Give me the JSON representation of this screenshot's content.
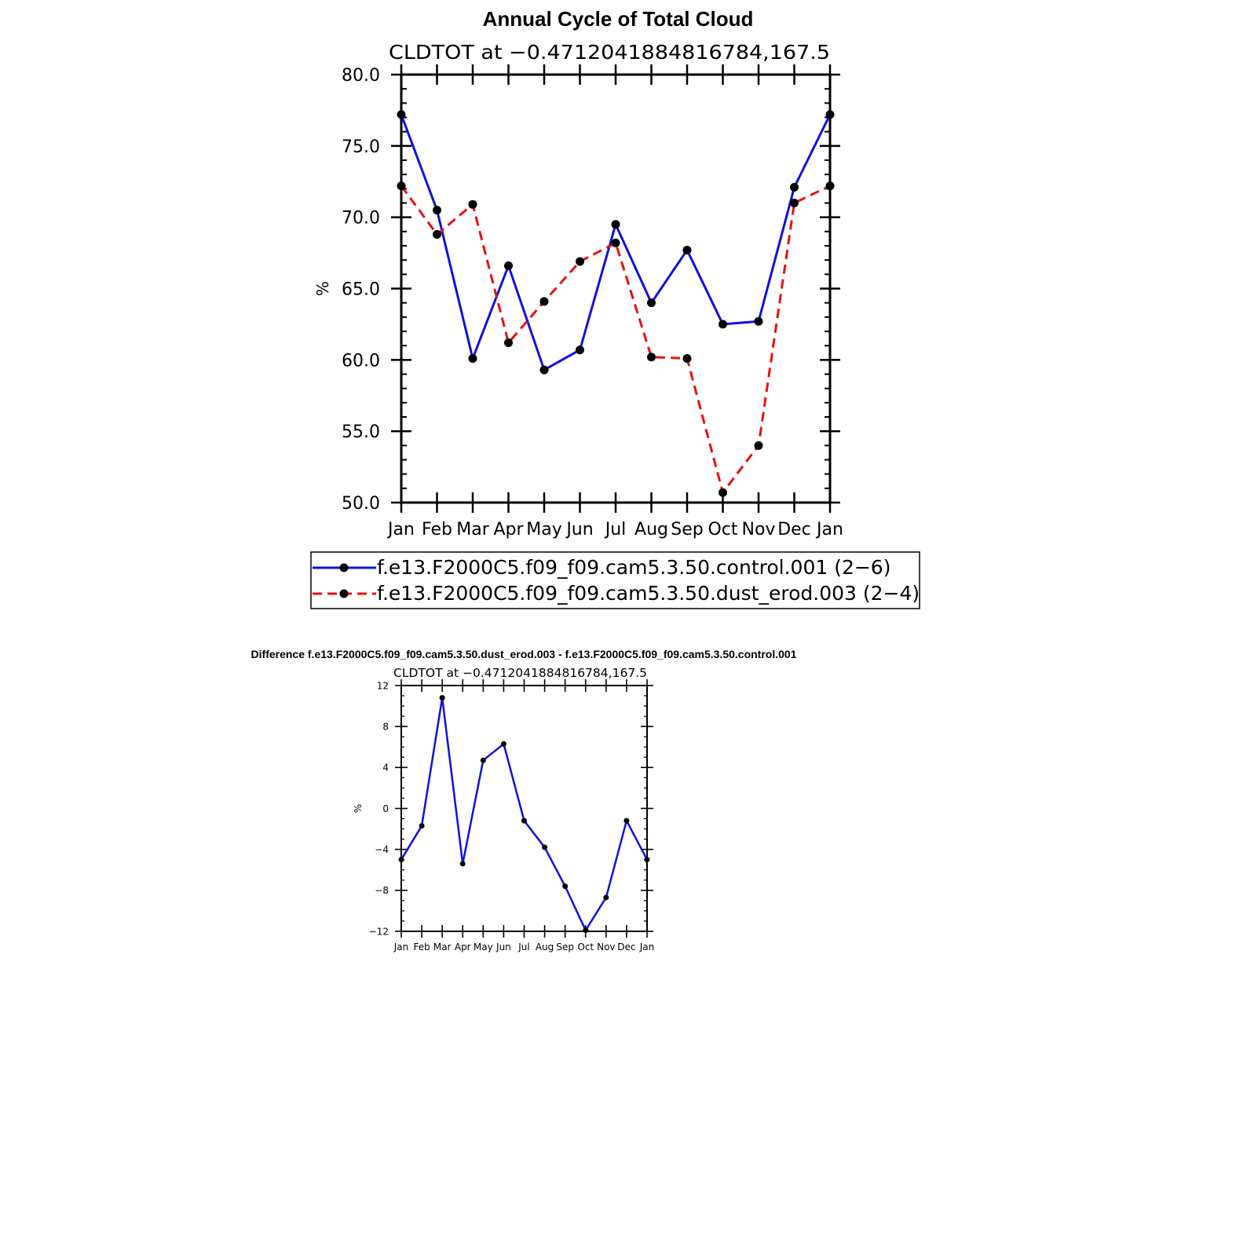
{
  "figure": {
    "title": "Annual Cycle of Total Cloud"
  },
  "chart_data": [
    {
      "type": "line",
      "title": "Annual Cycle of Total Cloud",
      "subtitle": "CLDTOT at −0.4712041884816784,167.5",
      "ylabel": "%",
      "xlabel": "",
      "ylim": [
        50.0,
        80.0
      ],
      "yticks": [
        "50.0",
        "55.0",
        "60.0",
        "65.0",
        "70.0",
        "75.0",
        "80.0"
      ],
      "categories": [
        "Jan",
        "Feb",
        "Mar",
        "Apr",
        "May",
        "Jun",
        "Jul",
        "Aug",
        "Sep",
        "Oct",
        "Nov",
        "Dec",
        "Jan"
      ],
      "grid": false,
      "legend_position": "bottom",
      "series": [
        {
          "name": "f.e13.F2000C5.f09_f09.cam5.3.50.control.001 (2−6)",
          "color": "#1010e0",
          "dash": "solid",
          "values": [
            77.2,
            70.5,
            60.1,
            66.6,
            59.3,
            60.7,
            69.5,
            64.0,
            67.7,
            62.5,
            62.7,
            72.1,
            77.2
          ]
        },
        {
          "name": "f.e13.F2000C5.f09_f09.cam5.3.50.dust_erod.003 (2−4)",
          "color": "#e81010",
          "dash": "dashed",
          "values": [
            72.2,
            68.8,
            70.9,
            61.2,
            64.1,
            66.9,
            68.2,
            60.2,
            60.1,
            50.7,
            54.0,
            71.0,
            72.2
          ]
        }
      ]
    },
    {
      "type": "line",
      "title": "Difference f.e13.F2000C5.f09_f09.cam5.3.50.dust_erod.003 - f.e13.F2000C5.f09_f09.cam5.3.50.control.001",
      "subtitle": "CLDTOT at −0.4712041884816784,167.5",
      "ylabel": "%",
      "xlabel": "",
      "ylim": [
        -12,
        12
      ],
      "yticks": [
        "−12",
        "−8",
        "−4",
        "0",
        "4",
        "8",
        "12"
      ],
      "categories": [
        "Jan",
        "Feb",
        "Mar",
        "Apr",
        "May",
        "Jun",
        "Jul",
        "Aug",
        "Sep",
        "Oct",
        "Nov",
        "Dec",
        "Jan"
      ],
      "grid": false,
      "series": [
        {
          "color": "#1010e0",
          "dash": "solid",
          "values": [
            -5.0,
            -1.7,
            10.8,
            -5.4,
            4.7,
            6.3,
            -1.2,
            -3.8,
            -7.6,
            -11.9,
            -8.7,
            -1.2,
            -5.0
          ]
        }
      ]
    }
  ]
}
